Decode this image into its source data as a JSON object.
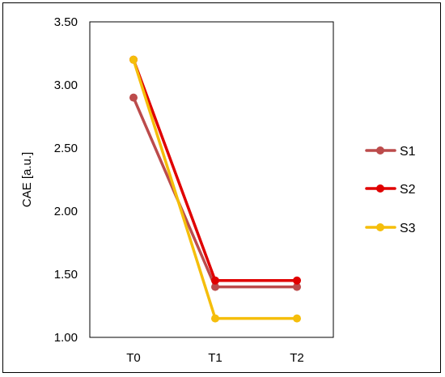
{
  "chart_data": {
    "type": "line",
    "title": "",
    "xlabel": "",
    "ylabel": "CAE [a.u.]",
    "categories": [
      "T0",
      "T1",
      "T2"
    ],
    "ylim": [
      1.0,
      3.5
    ],
    "yticks": [
      "1.00",
      "1.50",
      "2.00",
      "2.50",
      "3.00",
      "3.50"
    ],
    "grid": false,
    "legend_position": "right",
    "series": [
      {
        "name": "S1",
        "color": "#bc4b4b",
        "values": [
          2.9,
          1.4,
          1.4
        ]
      },
      {
        "name": "S2",
        "color": "#e00000",
        "values": [
          3.2,
          1.45,
          1.45
        ]
      },
      {
        "name": "S3",
        "color": "#f5be0b",
        "values": [
          3.2,
          1.15,
          1.15
        ]
      }
    ]
  }
}
